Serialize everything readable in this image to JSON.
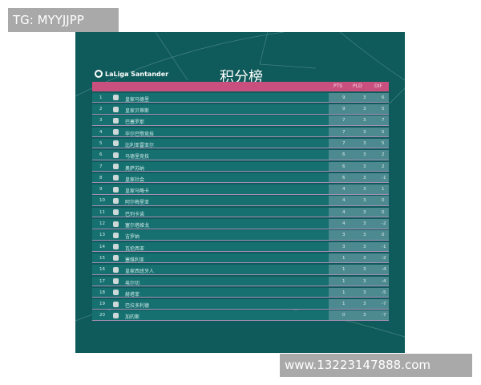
{
  "watermarks": {
    "top_left": "TG: MYYJJPP",
    "bottom_right": "www.13223147888.com"
  },
  "poster": {
    "brand": "LaLiga Santander",
    "title": "积分榜"
  },
  "columns": [
    "PTS",
    "PLD",
    "DIF"
  ],
  "rows": [
    {
      "rank": "1",
      "team": "皇家马德里",
      "pts": "9",
      "pld": "3",
      "dif": "6"
    },
    {
      "rank": "2",
      "team": "皇家贝蒂斯",
      "pts": "9",
      "pld": "3",
      "dif": "5"
    },
    {
      "rank": "3",
      "team": "巴塞罗那",
      "pts": "7",
      "pld": "3",
      "dif": "7"
    },
    {
      "rank": "4",
      "team": "毕尔巴鄂竞技",
      "pts": "7",
      "pld": "3",
      "dif": "5"
    },
    {
      "rank": "5",
      "team": "比利亚雷亚尔",
      "pts": "7",
      "pld": "3",
      "dif": "5"
    },
    {
      "rank": "6",
      "team": "马德里竞技",
      "pts": "6",
      "pld": "3",
      "dif": "2"
    },
    {
      "rank": "7",
      "team": "奥萨苏纳",
      "pts": "6",
      "pld": "3",
      "dif": "2"
    },
    {
      "rank": "8",
      "team": "皇家社会",
      "pts": "6",
      "pld": "3",
      "dif": "-1"
    },
    {
      "rank": "9",
      "team": "皇家马略卡",
      "pts": "4",
      "pld": "3",
      "dif": "1"
    },
    {
      "rank": "10",
      "team": "阿尔梅里亚",
      "pts": "4",
      "pld": "3",
      "dif": "0"
    },
    {
      "rank": "11",
      "team": "巴列卡诺",
      "pts": "4",
      "pld": "3",
      "dif": "0"
    },
    {
      "rank": "12",
      "team": "塞尔塔维戈",
      "pts": "4",
      "pld": "3",
      "dif": "-2"
    },
    {
      "rank": "13",
      "team": "吉罗纳",
      "pts": "3",
      "pld": "3",
      "dif": "0"
    },
    {
      "rank": "14",
      "team": "瓦伦西亚",
      "pts": "3",
      "pld": "3",
      "dif": "-1"
    },
    {
      "rank": "15",
      "team": "塞维利亚",
      "pts": "1",
      "pld": "3",
      "dif": "-2"
    },
    {
      "rank": "16",
      "team": "皇家西班牙人",
      "pts": "1",
      "pld": "3",
      "dif": "-4"
    },
    {
      "rank": "17",
      "team": "埃尔切",
      "pts": "1",
      "pld": "3",
      "dif": "-4"
    },
    {
      "rank": "18",
      "team": "赫塔菲",
      "pts": "1",
      "pld": "3",
      "dif": "-5"
    },
    {
      "rank": "19",
      "team": "巴拉多利德",
      "pts": "1",
      "pld": "3",
      "dif": "-7"
    },
    {
      "rank": "20",
      "team": "加的斯",
      "pts": "0",
      "pld": "3",
      "dif": "-7"
    }
  ],
  "colors": {
    "background": "#0f5a5a",
    "header": "#c9507e",
    "row": "#167070",
    "stats": "#4d8a90"
  }
}
